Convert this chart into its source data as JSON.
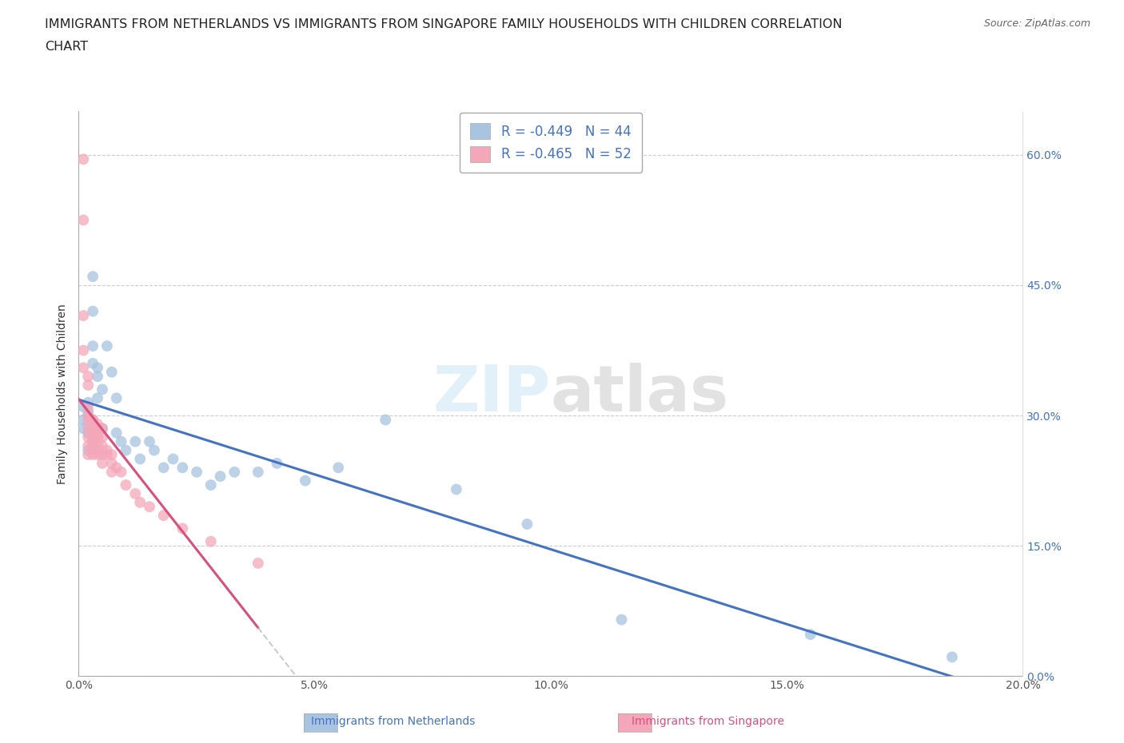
{
  "title_line1": "IMMIGRANTS FROM NETHERLANDS VS IMMIGRANTS FROM SINGAPORE FAMILY HOUSEHOLDS WITH CHILDREN CORRELATION",
  "title_line2": "CHART",
  "source": "Source: ZipAtlas.com",
  "xlabel_bottom_nl": "Immigrants from Netherlands",
  "xlabel_bottom_sg": "Immigrants from Singapore",
  "ylabel": "Family Households with Children",
  "xlim": [
    0.0,
    0.2
  ],
  "ylim": [
    0.0,
    0.65
  ],
  "xticks": [
    0.0,
    0.05,
    0.1,
    0.15,
    0.2
  ],
  "xtick_labels": [
    "0.0%",
    "5.0%",
    "10.0%",
    "15.0%",
    "20.0%"
  ],
  "yticks": [
    0.0,
    0.15,
    0.3,
    0.45,
    0.6
  ],
  "ytick_labels_right": [
    "0.0%",
    "15.0%",
    "30.0%",
    "45.0%",
    "60.0%"
  ],
  "netherlands_color": "#a8c4e0",
  "singapore_color": "#f4a7b9",
  "netherlands_line_color": "#4472c4",
  "singapore_line_color": "#d94f7e",
  "singapore_line_dashed_color": "#c0c0c0",
  "legend_text_color": "#4472c4",
  "R_netherlands": -0.449,
  "N_netherlands": 44,
  "R_singapore": -0.465,
  "N_singapore": 52,
  "netherlands_x": [
    0.001,
    0.001,
    0.001,
    0.002,
    0.002,
    0.002,
    0.002,
    0.002,
    0.003,
    0.003,
    0.003,
    0.003,
    0.004,
    0.004,
    0.004,
    0.005,
    0.005,
    0.006,
    0.007,
    0.008,
    0.008,
    0.009,
    0.01,
    0.012,
    0.013,
    0.015,
    0.016,
    0.018,
    0.02,
    0.022,
    0.025,
    0.028,
    0.03,
    0.033,
    0.038,
    0.042,
    0.048,
    0.055,
    0.065,
    0.08,
    0.095,
    0.115,
    0.155,
    0.185
  ],
  "netherlands_y": [
    0.31,
    0.285,
    0.295,
    0.28,
    0.305,
    0.315,
    0.3,
    0.26,
    0.46,
    0.42,
    0.38,
    0.36,
    0.355,
    0.345,
    0.32,
    0.33,
    0.285,
    0.38,
    0.35,
    0.32,
    0.28,
    0.27,
    0.26,
    0.27,
    0.25,
    0.27,
    0.26,
    0.24,
    0.25,
    0.24,
    0.235,
    0.22,
    0.23,
    0.235,
    0.235,
    0.245,
    0.225,
    0.24,
    0.295,
    0.215,
    0.175,
    0.065,
    0.048,
    0.022
  ],
  "singapore_x": [
    0.001,
    0.001,
    0.001,
    0.001,
    0.001,
    0.002,
    0.002,
    0.002,
    0.002,
    0.002,
    0.002,
    0.002,
    0.002,
    0.002,
    0.003,
    0.003,
    0.003,
    0.003,
    0.003,
    0.003,
    0.003,
    0.003,
    0.003,
    0.003,
    0.003,
    0.004,
    0.004,
    0.004,
    0.004,
    0.004,
    0.004,
    0.004,
    0.005,
    0.005,
    0.005,
    0.005,
    0.005,
    0.006,
    0.006,
    0.007,
    0.007,
    0.007,
    0.008,
    0.009,
    0.01,
    0.012,
    0.013,
    0.015,
    0.018,
    0.022,
    0.028,
    0.038
  ],
  "singapore_y": [
    0.595,
    0.525,
    0.415,
    0.375,
    0.355,
    0.345,
    0.335,
    0.31,
    0.3,
    0.295,
    0.285,
    0.275,
    0.265,
    0.255,
    0.295,
    0.285,
    0.275,
    0.27,
    0.265,
    0.255,
    0.295,
    0.285,
    0.28,
    0.27,
    0.265,
    0.275,
    0.265,
    0.26,
    0.255,
    0.29,
    0.285,
    0.275,
    0.285,
    0.275,
    0.265,
    0.255,
    0.245,
    0.26,
    0.255,
    0.255,
    0.245,
    0.235,
    0.24,
    0.235,
    0.22,
    0.21,
    0.2,
    0.195,
    0.185,
    0.17,
    0.155,
    0.13
  ]
}
